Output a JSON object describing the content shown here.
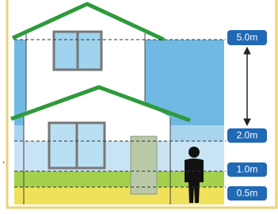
{
  "annotation": ",",
  "levels": [
    {
      "label": "5.0m"
    },
    {
      "label": "2.0m"
    },
    {
      "label": "1.0m"
    },
    {
      "label": "0.5m"
    }
  ]
}
